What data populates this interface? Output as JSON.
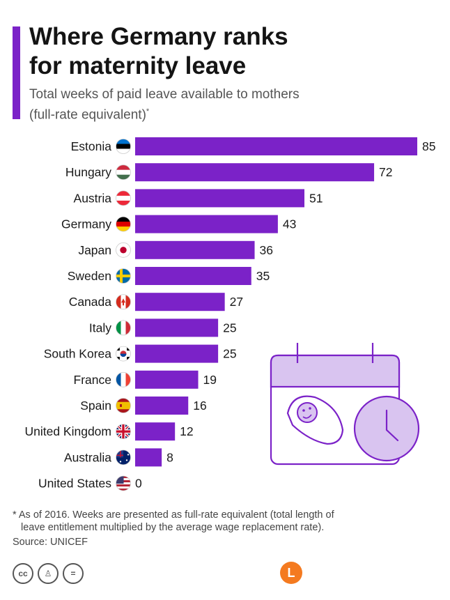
{
  "header": {
    "title_line1": "Where Germany ranks",
    "title_line2": "for maternity leave",
    "subtitle_line1": "Total weeks of paid leave available to mothers",
    "subtitle_line2": "(full-rate equivalent)",
    "subtitle_mark": "*"
  },
  "footer": {
    "footnote_line1": "* As of 2016. Weeks are presented as full-rate equivalent (total length of",
    "footnote_line2": "leave entitlement multiplied by the average wage replacement rate).",
    "source": "Source: UNICEF",
    "license_icons": [
      "cc-icon",
      "by-icon",
      "nd-icon"
    ],
    "brand_letter": "L"
  },
  "colors": {
    "bar": "#7b22c8",
    "accent": "#7b22c8",
    "illustration": "#7b22c8",
    "illustration_fill": "#d9c4f0"
  },
  "chart_data": {
    "type": "bar",
    "orientation": "horizontal",
    "categories": [
      "Estonia",
      "Hungary",
      "Austria",
      "Germany",
      "Japan",
      "Sweden",
      "Canada",
      "Italy",
      "South Korea",
      "France",
      "Spain",
      "United Kingdom",
      "Australia",
      "United States"
    ],
    "flags": [
      "flag-estonia-icon",
      "flag-hungary-icon",
      "flag-austria-icon",
      "flag-germany-icon",
      "flag-japan-icon",
      "flag-sweden-icon",
      "flag-canada-icon",
      "flag-italy-icon",
      "flag-south-korea-icon",
      "flag-france-icon",
      "flag-spain-icon",
      "flag-uk-icon",
      "flag-australia-icon",
      "flag-us-icon"
    ],
    "values": [
      85,
      72,
      51,
      43,
      36,
      35,
      27,
      25,
      25,
      19,
      16,
      12,
      8,
      0
    ],
    "xlim": [
      0,
      85
    ],
    "grid": false,
    "legend": "none"
  }
}
